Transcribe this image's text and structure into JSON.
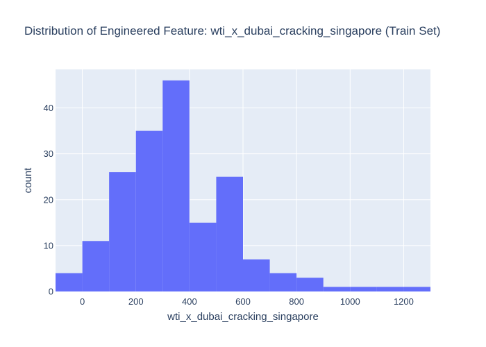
{
  "chart_data": {
    "type": "bar",
    "title": "Distribution of Engineered Feature: wti_x_dubai_cracking_singapore (Train Set)",
    "xlabel": "wti_x_dubai_cracking_singapore",
    "ylabel": "count",
    "xlim": [
      -100,
      1300
    ],
    "ylim": [
      0,
      48.4
    ],
    "x_ticks": [
      0,
      200,
      400,
      600,
      800,
      1000,
      1200
    ],
    "y_ticks": [
      0,
      10,
      20,
      30,
      40
    ],
    "bin_width": 100,
    "bins": [
      {
        "start": -100,
        "end": 0,
        "count": 4
      },
      {
        "start": 0,
        "end": 100,
        "count": 11
      },
      {
        "start": 100,
        "end": 200,
        "count": 26
      },
      {
        "start": 200,
        "end": 300,
        "count": 35
      },
      {
        "start": 300,
        "end": 400,
        "count": 46
      },
      {
        "start": 400,
        "end": 500,
        "count": 15
      },
      {
        "start": 500,
        "end": 600,
        "count": 25
      },
      {
        "start": 600,
        "end": 700,
        "count": 7
      },
      {
        "start": 700,
        "end": 800,
        "count": 4
      },
      {
        "start": 800,
        "end": 900,
        "count": 3
      },
      {
        "start": 900,
        "end": 1000,
        "count": 1
      },
      {
        "start": 1000,
        "end": 1100,
        "count": 1
      },
      {
        "start": 1100,
        "end": 1200,
        "count": 1
      },
      {
        "start": 1200,
        "end": 1300,
        "count": 1
      }
    ],
    "grid": true,
    "legend": "none",
    "colors": {
      "bar": "#636efa",
      "plot_bg": "#e5ecf6",
      "grid": "#ffffff",
      "text": "#2a3f5f"
    }
  }
}
